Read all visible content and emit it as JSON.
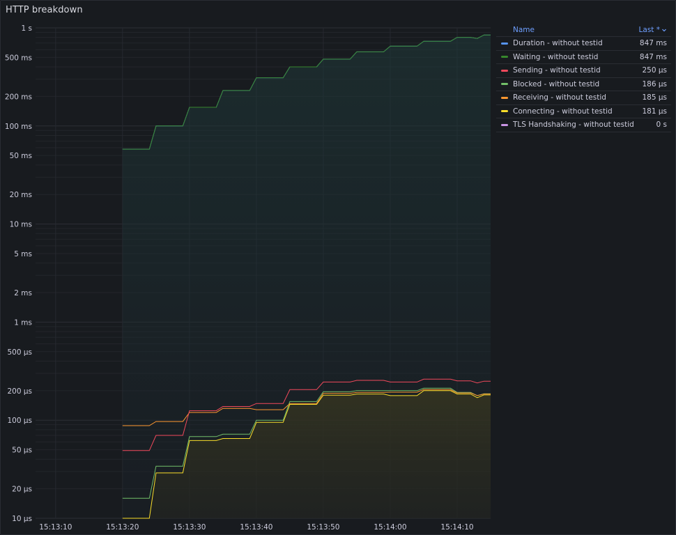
{
  "panel": {
    "title": "HTTP breakdown"
  },
  "legend": {
    "name_header": "Name",
    "last_header": "Last *",
    "sort_icon": "chevron-down-icon"
  },
  "chart_data": {
    "type": "line",
    "title": "HTTP breakdown",
    "y_scale": "log",
    "y_unit": "seconds",
    "ylim": [
      1e-05,
      1
    ],
    "y_ticks": [
      {
        "label": "1 s",
        "value": 1
      },
      {
        "label": "500 ms",
        "value": 0.5
      },
      {
        "label": "200 ms",
        "value": 0.2
      },
      {
        "label": "100 ms",
        "value": 0.1
      },
      {
        "label": "50 ms",
        "value": 0.05
      },
      {
        "label": "20 ms",
        "value": 0.02
      },
      {
        "label": "10 ms",
        "value": 0.01
      },
      {
        "label": "5 ms",
        "value": 0.005
      },
      {
        "label": "2 ms",
        "value": 0.002
      },
      {
        "label": "1 ms",
        "value": 0.001
      },
      {
        "label": "500 µs",
        "value": 0.0005
      },
      {
        "label": "200 µs",
        "value": 0.0002
      },
      {
        "label": "100 µs",
        "value": 0.0001
      },
      {
        "label": "50 µs",
        "value": 5e-05
      },
      {
        "label": "20 µs",
        "value": 2e-05
      },
      {
        "label": "10 µs",
        "value": 1e-05
      }
    ],
    "x_ticks": [
      "15:13:10",
      "15:13:20",
      "15:13:30",
      "15:13:40",
      "15:13:50",
      "15:14:00",
      "15:14:10"
    ],
    "xlim": [
      "15:13:07",
      "15:14:15"
    ],
    "grid": true,
    "legend_position": "right",
    "x": [
      "15:13:20",
      "15:13:24",
      "15:13:25",
      "15:13:29",
      "15:13:30",
      "15:13:34",
      "15:13:35",
      "15:13:39",
      "15:13:40",
      "15:13:44",
      "15:13:45",
      "15:13:49",
      "15:13:50",
      "15:13:54",
      "15:13:55",
      "15:13:59",
      "15:14:00",
      "15:14:04",
      "15:14:05",
      "15:14:09",
      "15:14:10",
      "15:14:12",
      "15:14:13",
      "15:14:14",
      "15:14:15"
    ],
    "series": [
      {
        "name": "Duration - without testid",
        "color": "#5794f2",
        "last": "847 ms",
        "fill": false,
        "values": [
          0.058,
          0.058,
          0.1,
          0.1,
          0.155,
          0.155,
          0.23,
          0.23,
          0.31,
          0.31,
          0.4,
          0.4,
          0.48,
          0.48,
          0.57,
          0.57,
          0.65,
          0.65,
          0.73,
          0.73,
          0.8,
          0.8,
          0.78,
          0.847,
          0.847
        ]
      },
      {
        "name": "Waiting - without testid",
        "color": "#37872d",
        "last": "847 ms",
        "fill": true,
        "values": [
          0.058,
          0.058,
          0.1,
          0.1,
          0.155,
          0.155,
          0.23,
          0.23,
          0.31,
          0.31,
          0.4,
          0.4,
          0.48,
          0.48,
          0.57,
          0.57,
          0.65,
          0.65,
          0.73,
          0.73,
          0.8,
          0.8,
          0.78,
          0.847,
          0.847
        ]
      },
      {
        "name": "Sending - without testid",
        "color": "#f2495c",
        "last": "250 µs",
        "fill": false,
        "values": [
          4.9e-05,
          4.9e-05,
          7e-05,
          7e-05,
          0.000125,
          0.000125,
          0.000138,
          0.000138,
          0.000148,
          0.000148,
          0.000205,
          0.000205,
          0.000245,
          0.000245,
          0.000255,
          0.000255,
          0.000245,
          0.000245,
          0.000262,
          0.000262,
          0.000252,
          0.000252,
          0.00024,
          0.00025,
          0.00025
        ]
      },
      {
        "name": "Blocked - without testid",
        "color": "#73bf69",
        "last": "186 µs",
        "fill": false,
        "values": [
          1.6e-05,
          1.6e-05,
          3.4e-05,
          3.4e-05,
          6.8e-05,
          6.8e-05,
          7.2e-05,
          7.2e-05,
          0.0001,
          0.0001,
          0.000155,
          0.000155,
          0.000195,
          0.000195,
          0.0002,
          0.0002,
          0.0002,
          0.0002,
          0.000212,
          0.000212,
          0.000192,
          0.000192,
          0.000178,
          0.000186,
          0.000186
        ]
      },
      {
        "name": "Receiving - without testid",
        "color": "#ff9830",
        "last": "185 µs",
        "fill": false,
        "values": [
          8.8e-05,
          8.8e-05,
          9.7e-05,
          9.7e-05,
          0.00012,
          0.00012,
          0.000132,
          0.000132,
          0.000128,
          0.000128,
          0.000148,
          0.000148,
          0.000188,
          0.000188,
          0.000192,
          0.000192,
          0.000193,
          0.000193,
          0.000205,
          0.000205,
          0.00019,
          0.00019,
          0.000178,
          0.000185,
          0.000185
        ]
      },
      {
        "name": "Connecting - without testid",
        "color": "#fade2a",
        "last": "181 µs",
        "fill": true,
        "values": [
          1e-05,
          1e-05,
          2.9e-05,
          2.9e-05,
          6.2e-05,
          6.2e-05,
          6.5e-05,
          6.5e-05,
          9.5e-05,
          9.5e-05,
          0.000145,
          0.000145,
          0.00018,
          0.00018,
          0.000185,
          0.000185,
          0.000178,
          0.000178,
          0.0002,
          0.0002,
          0.000185,
          0.000185,
          0.00017,
          0.000181,
          0.000181
        ]
      },
      {
        "name": "TLS Handshaking - without testid",
        "color": "#ca95e5",
        "last": "0 s",
        "fill": false,
        "values": [
          0,
          0,
          0,
          0,
          0,
          0,
          0,
          0,
          0,
          0,
          0,
          0,
          0,
          0,
          0,
          0,
          0,
          0,
          0,
          0,
          0,
          0,
          0,
          0,
          0
        ]
      }
    ]
  }
}
